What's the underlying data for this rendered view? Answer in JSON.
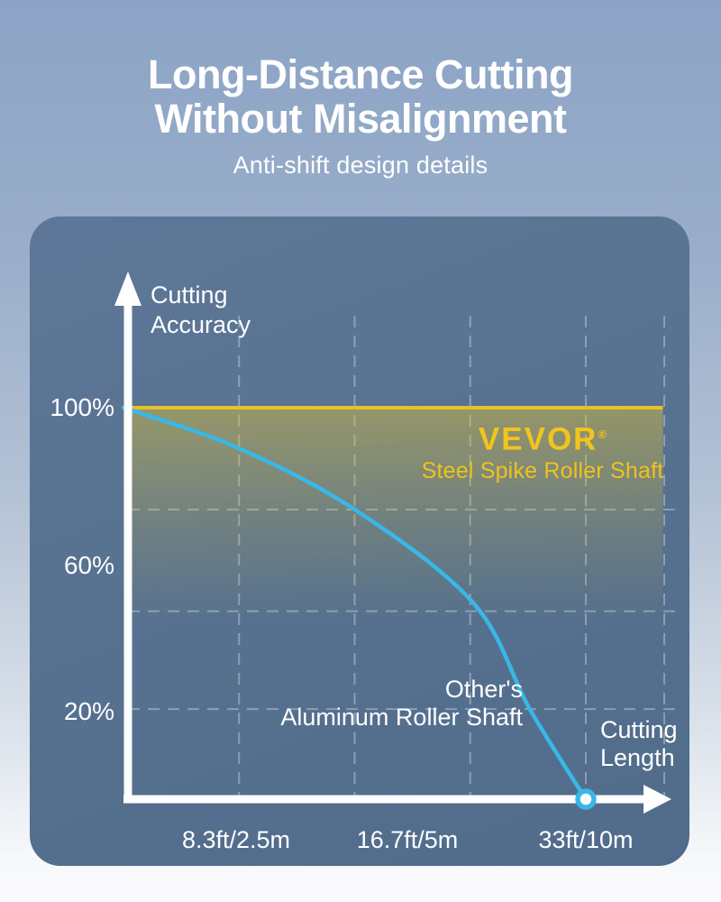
{
  "header": {
    "title_line1": "Long-Distance Cutting",
    "title_line2": "Without Misalignment",
    "subtitle": "Anti-shift design details"
  },
  "chart": {
    "y_axis_title_lines": [
      "Cutting",
      "Accuracy"
    ],
    "x_axis_title_lines": [
      "Cutting",
      "Length"
    ],
    "brand": {
      "logo_text": "VEVOR",
      "reg_mark": "®",
      "tagline": "Steel Spike Roller Shaft"
    },
    "competitor_label_lines": [
      "Other's",
      "Aluminum Roller Shaft"
    ]
  },
  "colors": {
    "vevor_line": "#E8C02A",
    "vevor_fill": "#E9C730",
    "brand_yellow": "#F3C41C",
    "competitor_curve": "#38B8E8",
    "axis_white": "#FFFFFF",
    "gridline": "rgba(255,255,255,0.32)",
    "panel_blue": "#56718F"
  },
  "chart_data": {
    "type": "line",
    "title": "",
    "xlabel": "Cutting Length",
    "ylabel": "Cutting Accuracy",
    "x_unit": "ft",
    "y_unit": "percent cutting accuracy",
    "x_range_ft": [
      0,
      38.5
    ],
    "y_range_pct": [
      0,
      100
    ],
    "grid": "dashed",
    "x_ticks": [
      {
        "ft": 8.3,
        "label": "8.3ft/2.5m"
      },
      {
        "ft": 16.7,
        "label": "16.7ft/5m"
      },
      {
        "ft": 33,
        "label": "33ft/10m"
      }
    ],
    "y_ticks": [
      {
        "pct": 100,
        "label": "100%"
      },
      {
        "pct": 60,
        "label": "60%"
      },
      {
        "pct": 20,
        "label": "20%"
      }
    ],
    "x_gridlines_ft": [
      8.25,
      16.5,
      24.75,
      33,
      38.6
    ],
    "y_gridlines_pct": [
      74,
      48,
      23
    ],
    "series": [
      {
        "name": "VEVOR Steel Spike Roller Shaft",
        "color": "#E8C02A",
        "style": "flat-line-with-fading-area",
        "points_ft_pct": [
          [
            0,
            100
          ],
          [
            38.5,
            100
          ]
        ],
        "area_fade_to_pct": 45
      },
      {
        "name": "Other's Aluminum Roller Shaft",
        "color": "#38B8E8",
        "style": "curve",
        "points_ft_pct": [
          [
            0,
            100
          ],
          [
            8,
            90
          ],
          [
            16.5,
            74
          ],
          [
            25,
            50
          ],
          [
            29,
            23
          ],
          [
            33,
            0
          ]
        ],
        "endpoint_marker_ft_pct": [
          33,
          0
        ]
      }
    ]
  }
}
